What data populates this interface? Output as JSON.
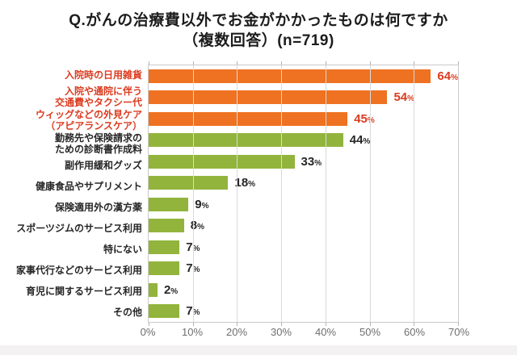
{
  "title": {
    "line1": "Q.がんの治療費以外でお金がかかったものは何ですか",
    "line2": "（複数回答）(n=719)"
  },
  "chart_data": {
    "type": "bar",
    "orientation": "horizontal",
    "title": "Q.がんの治療費以外でお金がかかったものは何ですか（複数回答）(n=719)",
    "sample_size": "n=719",
    "categories": [
      "入院時の日用雑貨",
      "入院や通院に伴う\n交通費やタクシー代",
      "ウィッグなどの外見ケア\n（アピアランスケア）",
      "勤務先や保険請求の\nための診断書作成料",
      "副作用緩和グッズ",
      "健康食品やサプリメント",
      "保険適用外の漢方薬",
      "スポーツジムのサービス利用",
      "特にない",
      "家事代行などのサービス利用",
      "育児に関するサービス利用",
      "その他"
    ],
    "values": [
      64,
      54,
      45,
      44,
      33,
      18,
      9,
      8,
      7,
      7,
      2,
      7
    ],
    "unit": "%",
    "highlight_indices": [
      0,
      1,
      2
    ],
    "xlim": [
      0,
      70
    ],
    "xticks": [
      "0%",
      "10%",
      "20%",
      "30%",
      "40%",
      "50%",
      "60%",
      "70%"
    ],
    "grid": "on",
    "legend": "none",
    "colors": {
      "bar_highlight": "#ee7221",
      "bar_normal": "#92b43c",
      "value_highlight": "#dc3b1f",
      "value_normal": "#262626",
      "grid": "#dadada",
      "tick": "#b3b3b3",
      "axis_text": "#6e6e6e"
    }
  }
}
